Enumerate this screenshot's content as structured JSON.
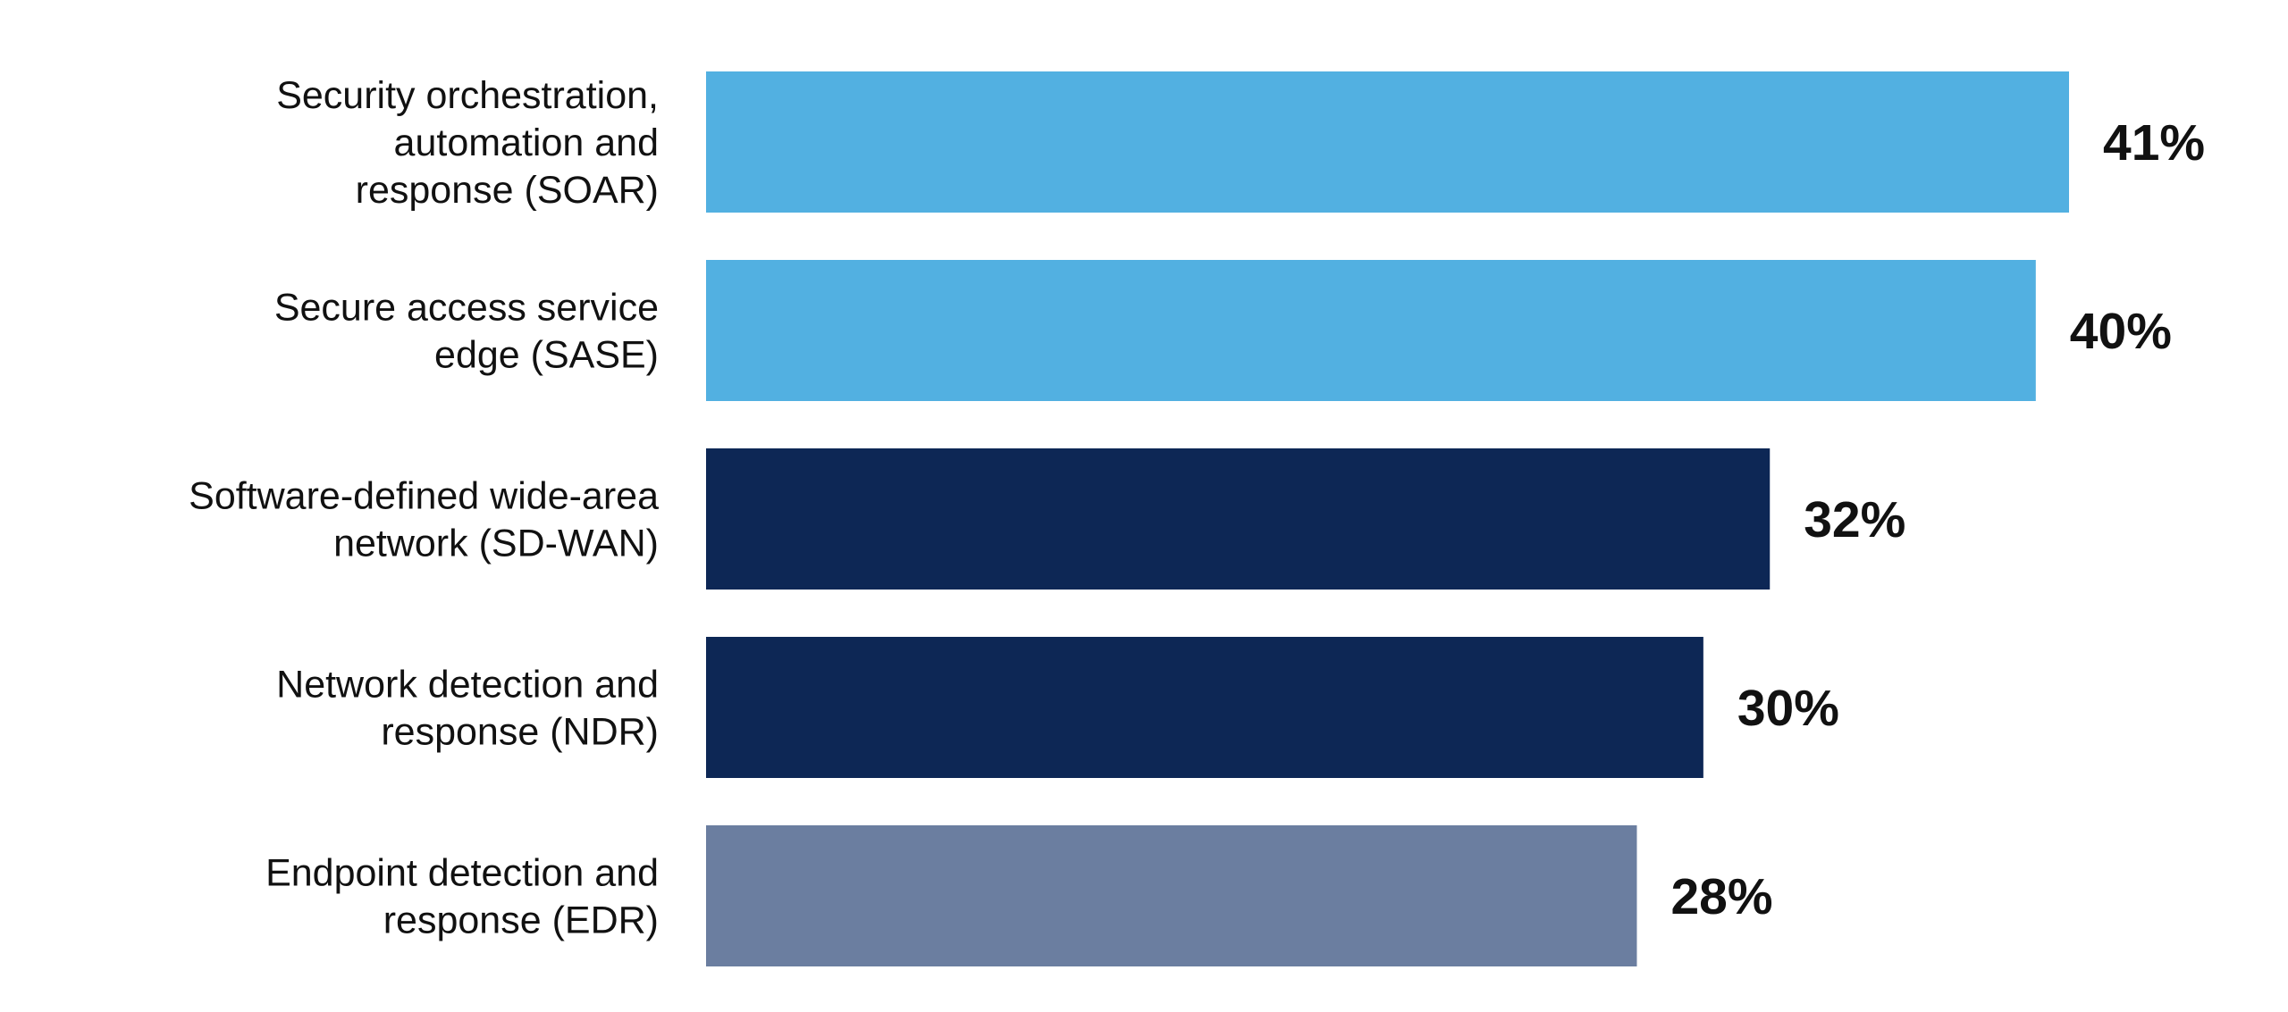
{
  "chart_data": {
    "type": "bar",
    "orientation": "horizontal",
    "categories": [
      "Security orchestration, automation and response (SOAR)",
      "Secure access service edge (SASE)",
      "Software-defined wide-area network (SD-WAN)",
      "Network detection and response (NDR)",
      "Endpoint detection and response (EDR)"
    ],
    "category_lines": [
      [
        "Security orchestration,",
        "automation and",
        "response (SOAR)"
      ],
      [
        "Secure access service",
        "edge (SASE)"
      ],
      [
        "Software-defined wide-area",
        "network (SD-WAN)"
      ],
      [
        "Network detection and",
        "response (NDR)"
      ],
      [
        "Endpoint detection and",
        "response (EDR)"
      ]
    ],
    "values": [
      41,
      40,
      32,
      30,
      28
    ],
    "value_labels": [
      "41%",
      "40%",
      "32%",
      "30%",
      "28%"
    ],
    "bar_colors": [
      "#52B0E1",
      "#52B0E1",
      "#0D2755",
      "#0D2755",
      "#6B7EA0"
    ],
    "xlim": [
      0,
      41
    ],
    "unit": "%",
    "title": "",
    "xlabel": "",
    "ylabel": "",
    "grid": false,
    "legend": "none"
  }
}
